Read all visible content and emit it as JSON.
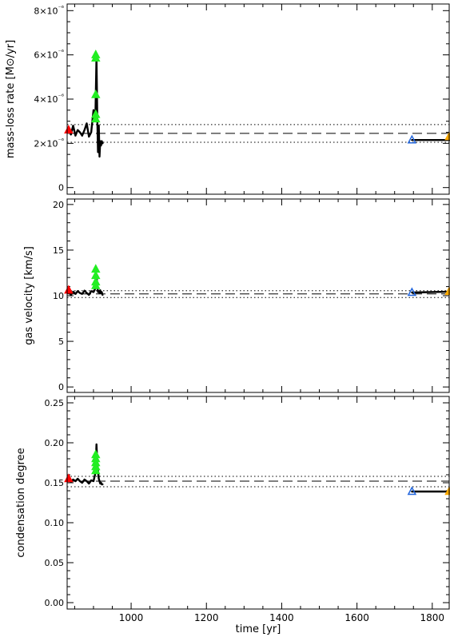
{
  "x_axis": {
    "label": "time [yr]",
    "range": [
      830,
      1845
    ],
    "ticks": [
      {
        "value": 1000,
        "label": "1000"
      },
      {
        "value": 1200,
        "label": "1200"
      },
      {
        "value": 1400,
        "label": "1400"
      },
      {
        "value": 1600,
        "label": "1600"
      },
      {
        "value": 1800,
        "label": "1800"
      }
    ],
    "minor_step": 50
  },
  "colors": {
    "trace": "#000000",
    "start_marker": "#ff0000",
    "green_marker": "#22ee22",
    "end_marker": "#2266dd",
    "final_marker": "#ffaa00"
  },
  "chart_data": [
    {
      "type": "line",
      "name": "mass-loss-rate",
      "ylabel": "mass-loss rate [M⊙/yr]",
      "ylim": [
        -3e-07,
        8.3e-06
      ],
      "yticks": [
        {
          "value": 0,
          "label": "0"
        },
        {
          "value": 2e-06,
          "label": "2×10⁻⁶"
        },
        {
          "value": 4e-06,
          "label": "4×10⁻⁶"
        },
        {
          "value": 6e-06,
          "label": "6×10⁻⁶"
        },
        {
          "value": 8e-06,
          "label": "8×10⁻⁶"
        }
      ],
      "yminor_step": 5e-07,
      "series": [
        {
          "x": [
            834,
            840,
            846,
            852,
            858,
            864,
            870,
            876,
            882,
            888,
            894,
            900,
            905,
            908,
            910,
            912,
            914,
            916,
            918,
            920,
            922,
            924
          ],
          "y": [
            2.6e-06,
            2.4e-06,
            2.8e-06,
            2.35e-06,
            2.6e-06,
            2.5e-06,
            2.35e-06,
            2.6e-06,
            2.9e-06,
            2.3e-06,
            2.5e-06,
            3.5e-06,
            3.1e-06,
            5.9e-06,
            3.2e-06,
            1.6e-06,
            2.8e-06,
            1.4e-06,
            2.1e-06,
            1.9e-06,
            2.1e-06,
            2e-06
          ]
        },
        {
          "x": [
            1746,
            1845
          ],
          "y": [
            2.15e-06,
            2.15e-06
          ]
        }
      ],
      "reference_lines": [
        {
          "style": "dotted",
          "y": 2.85e-06
        },
        {
          "style": "dashed",
          "y": 2.45e-06
        },
        {
          "style": "dotted",
          "y": 2.05e-06
        }
      ],
      "markers": [
        {
          "x": 834,
          "y": 2.6e-06,
          "color": "start_marker"
        },
        {
          "x": 906,
          "y": 6e-06,
          "color": "green_marker"
        },
        {
          "x": 906,
          "y": 5.85e-06,
          "color": "green_marker"
        },
        {
          "x": 906,
          "y": 4.2e-06,
          "color": "green_marker"
        },
        {
          "x": 906,
          "y": 3.3e-06,
          "color": "green_marker"
        },
        {
          "x": 906,
          "y": 3.1e-06,
          "color": "green_marker"
        },
        {
          "x": 1746,
          "y": 2.15e-06,
          "color": "end_marker"
        },
        {
          "x": 1845,
          "y": 2.3e-06,
          "color": "final_marker"
        }
      ]
    },
    {
      "type": "line",
      "name": "gas-velocity",
      "ylabel": "gas velocity [km/s]",
      "ylim": [
        -0.6,
        20.6
      ],
      "yticks": [
        {
          "value": 0,
          "label": "0"
        },
        {
          "value": 5,
          "label": "5"
        },
        {
          "value": 10,
          "label": "10"
        },
        {
          "value": 15,
          "label": "15"
        },
        {
          "value": 20,
          "label": "20"
        }
      ],
      "yminor_step": 1,
      "series": [
        {
          "x": [
            834,
            840,
            846,
            852,
            858,
            864,
            870,
            876,
            882,
            888,
            894,
            900,
            905,
            908,
            910,
            912,
            914,
            916,
            918,
            920,
            922,
            924
          ],
          "y": [
            10.4,
            10.1,
            10.45,
            10.2,
            10.5,
            10.3,
            10.2,
            10.55,
            10.3,
            10.1,
            10.5,
            10.4,
            10.8,
            12.3,
            11.2,
            10.4,
            10.5,
            10.3,
            10.6,
            10.3,
            10.4,
            10.1
          ]
        },
        {
          "x": [
            1746,
            1845
          ],
          "y": [
            10.35,
            10.45
          ]
        }
      ],
      "reference_lines": [
        {
          "style": "dotted",
          "y": 10.55
        },
        {
          "style": "dashed",
          "y": 10.2
        },
        {
          "style": "dotted",
          "y": 9.8
        }
      ],
      "markers": [
        {
          "x": 834,
          "y": 10.6,
          "color": "start_marker"
        },
        {
          "x": 906,
          "y": 12.9,
          "color": "green_marker"
        },
        {
          "x": 906,
          "y": 12.2,
          "color": "green_marker"
        },
        {
          "x": 906,
          "y": 11.5,
          "color": "green_marker"
        },
        {
          "x": 906,
          "y": 11.1,
          "color": "green_marker"
        },
        {
          "x": 1746,
          "y": 10.35,
          "color": "end_marker"
        },
        {
          "x": 1845,
          "y": 10.45,
          "color": "final_marker"
        }
      ]
    },
    {
      "type": "line",
      "name": "condensation-degree",
      "ylabel": "condensation degree",
      "ylim": [
        -0.008,
        0.258
      ],
      "yticks": [
        {
          "value": 0.0,
          "label": "0.00"
        },
        {
          "value": 0.05,
          "label": "0.05"
        },
        {
          "value": 0.1,
          "label": "0.10"
        },
        {
          "value": 0.15,
          "label": "0.15"
        },
        {
          "value": 0.2,
          "label": "0.20"
        },
        {
          "value": 0.25,
          "label": "0.25"
        }
      ],
      "yminor_step": 0.01,
      "series": [
        {
          "x": [
            834,
            840,
            846,
            852,
            858,
            864,
            870,
            876,
            882,
            888,
            894,
            900,
            905,
            908,
            910,
            912,
            914,
            916,
            918,
            920,
            922,
            924
          ],
          "y": [
            0.155,
            0.151,
            0.154,
            0.152,
            0.155,
            0.152,
            0.15,
            0.154,
            0.152,
            0.149,
            0.153,
            0.152,
            0.162,
            0.198,
            0.176,
            0.165,
            0.155,
            0.152,
            0.149,
            0.15,
            0.148,
            0.148
          ]
        },
        {
          "x": [
            1746,
            1845
          ],
          "y": [
            0.139,
            0.139
          ]
        }
      ],
      "reference_lines": [
        {
          "style": "dotted",
          "y": 0.158
        },
        {
          "style": "dashed",
          "y": 0.152
        },
        {
          "style": "dotted",
          "y": 0.145
        }
      ],
      "markers": [
        {
          "x": 834,
          "y": 0.155,
          "color": "start_marker"
        },
        {
          "x": 906,
          "y": 0.185,
          "color": "green_marker"
        },
        {
          "x": 906,
          "y": 0.18,
          "color": "green_marker"
        },
        {
          "x": 906,
          "y": 0.175,
          "color": "green_marker"
        },
        {
          "x": 906,
          "y": 0.17,
          "color": "green_marker"
        },
        {
          "x": 906,
          "y": 0.165,
          "color": "green_marker"
        },
        {
          "x": 1746,
          "y": 0.139,
          "color": "end_marker"
        },
        {
          "x": 1845,
          "y": 0.139,
          "color": "final_marker"
        }
      ]
    }
  ]
}
